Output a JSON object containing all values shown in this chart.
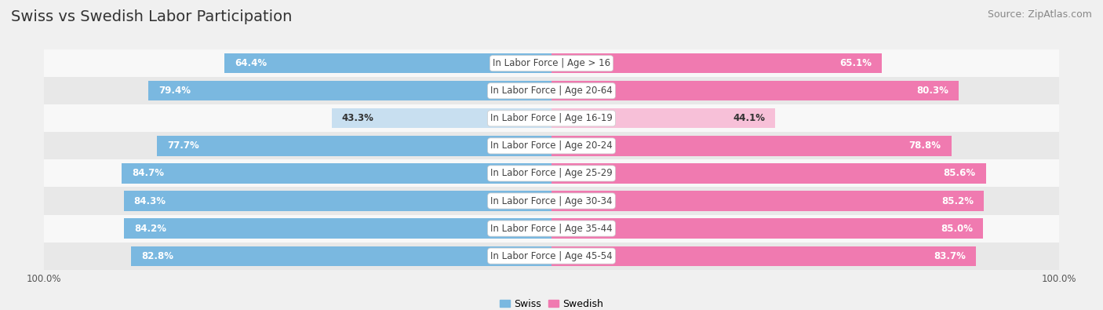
{
  "title": "Swiss vs Swedish Labor Participation",
  "source": "Source: ZipAtlas.com",
  "categories": [
    "In Labor Force | Age > 16",
    "In Labor Force | Age 20-64",
    "In Labor Force | Age 16-19",
    "In Labor Force | Age 20-24",
    "In Labor Force | Age 25-29",
    "In Labor Force | Age 30-34",
    "In Labor Force | Age 35-44",
    "In Labor Force | Age 45-54"
  ],
  "swiss_values": [
    64.4,
    79.4,
    43.3,
    77.7,
    84.7,
    84.3,
    84.2,
    82.8
  ],
  "swedish_values": [
    65.1,
    80.3,
    44.1,
    78.8,
    85.6,
    85.2,
    85.0,
    83.7
  ],
  "swiss_color": "#7ab8e0",
  "swiss_color_light": "#c8dff0",
  "swedish_color": "#f07ab0",
  "swedish_color_light": "#f7c0d8",
  "bar_height": 0.72,
  "background_color": "#f0f0f0",
  "row_bg_light": "#f8f8f8",
  "row_bg_dark": "#e8e8e8",
  "center_label_bg": "#ffffff",
  "xlim_left": -100,
  "xlim_right": 100,
  "legend_swiss": "Swiss",
  "legend_swedish": "Swedish",
  "title_fontsize": 14,
  "source_fontsize": 9,
  "cat_label_fontsize": 8.5,
  "bar_label_fontsize": 8.5,
  "axis_label_fontsize": 8.5,
  "light_rows": [
    2
  ]
}
